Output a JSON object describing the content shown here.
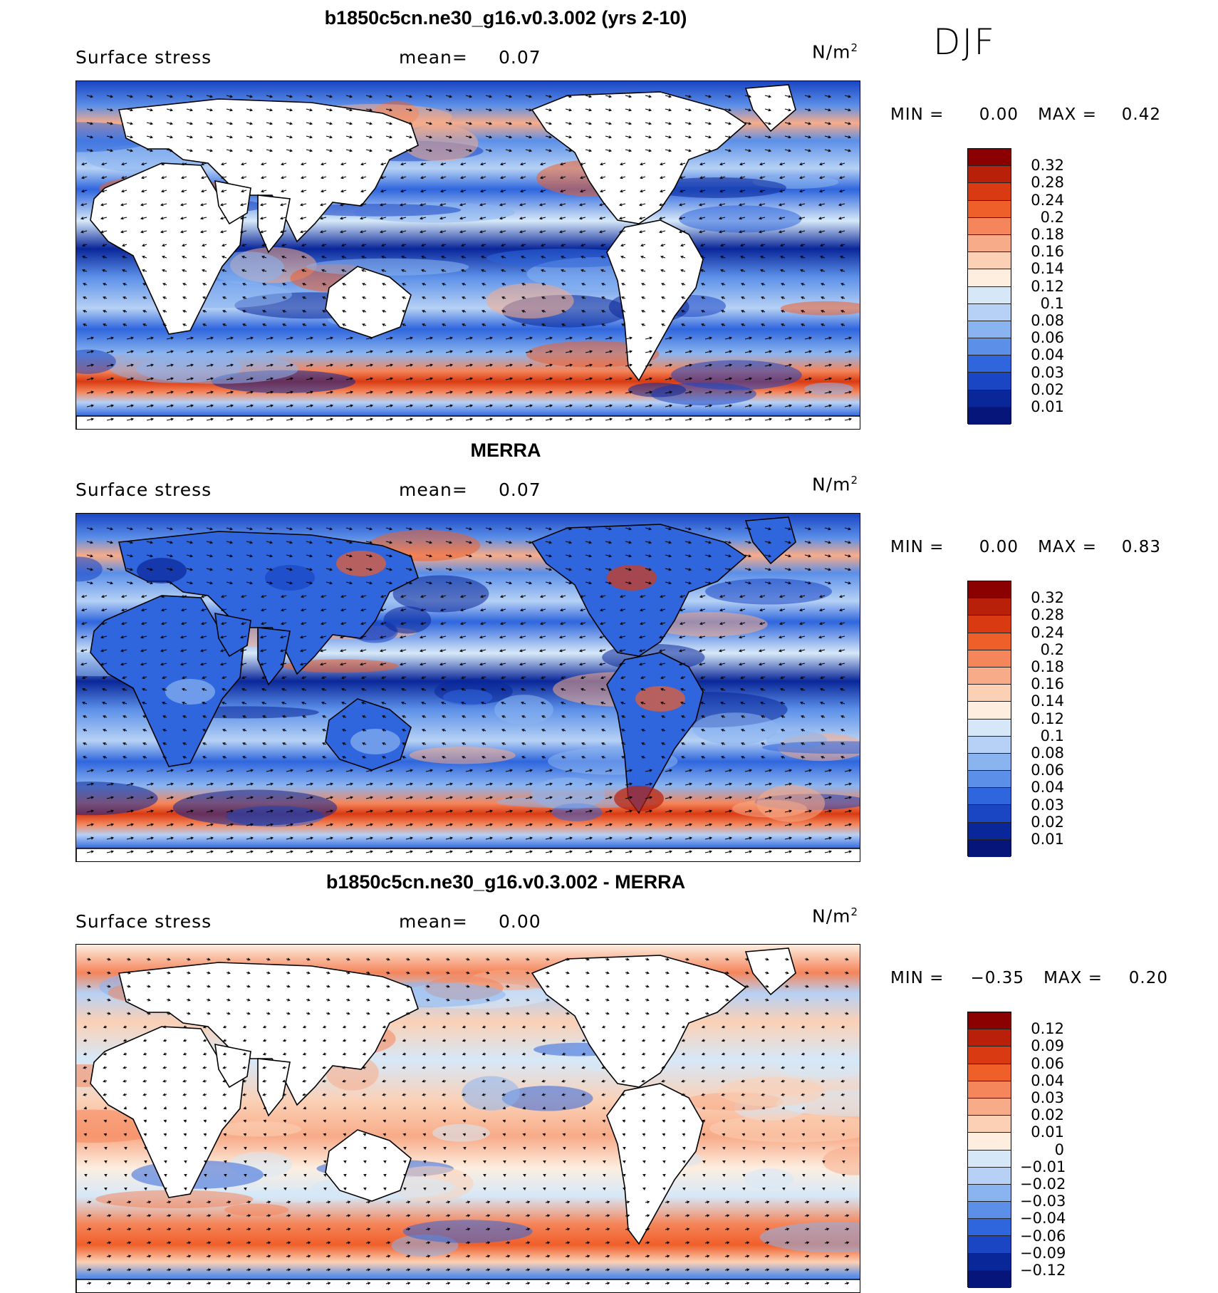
{
  "season": "DJF",
  "units": "N/m",
  "units_exp": "2",
  "panels": [
    {
      "title": "b1850c5cn.ne30_g16.v0.3.002 (yrs 2-10)",
      "variable": "Surface stress",
      "mean_label": "mean=",
      "mean_value": "0.07",
      "min_label": "MIN =",
      "min_value": "0.00",
      "max_label": "MAX =",
      "max_value": "0.42",
      "legend": [
        "0.32",
        "0.28",
        "0.24",
        "0.2",
        "0.18",
        "0.16",
        "0.14",
        "0.12",
        "0.1",
        "0.08",
        "0.06",
        "0.04",
        "0.03",
        "0.02",
        "0.01"
      ],
      "colors": [
        "#8b0000",
        "#b8200a",
        "#d93a12",
        "#ef5f2a",
        "#f5855a",
        "#f8ab88",
        "#fbd0b5",
        "#fdeee0",
        "#d6e8f8",
        "#b6d1f5",
        "#8ab4f0",
        "#5b8fe8",
        "#2f66dd",
        "#1a46c4",
        "#0a2799",
        "#05157a"
      ]
    },
    {
      "title": "MERRA",
      "variable": "Surface stress",
      "mean_label": "mean=",
      "mean_value": "0.07",
      "min_label": "MIN =",
      "min_value": "0.00",
      "max_label": "MAX =",
      "max_value": "0.83",
      "legend": [
        "0.32",
        "0.28",
        "0.24",
        "0.2",
        "0.18",
        "0.16",
        "0.14",
        "0.12",
        "0.1",
        "0.08",
        "0.06",
        "0.04",
        "0.03",
        "0.02",
        "0.01"
      ],
      "colors": [
        "#8b0000",
        "#b8200a",
        "#d93a12",
        "#ef5f2a",
        "#f5855a",
        "#f8ab88",
        "#fbd0b5",
        "#fdeee0",
        "#d6e8f8",
        "#b6d1f5",
        "#8ab4f0",
        "#5b8fe8",
        "#2f66dd",
        "#1a46c4",
        "#0a2799",
        "#05157a"
      ]
    },
    {
      "title": "b1850c5cn.ne30_g16.v0.3.002 - MERRA",
      "variable": "Surface stress",
      "mean_label": "mean=",
      "mean_value": "0.00",
      "min_label": "MIN =",
      "min_value": "−0.35",
      "max_label": "MAX =",
      "max_value": "0.20",
      "legend": [
        "0.12",
        "0.09",
        "0.06",
        "0.04",
        "0.03",
        "0.02",
        "0.01",
        "0",
        "−0.01",
        "−0.02",
        "−0.03",
        "−0.04",
        "−0.06",
        "−0.09",
        "−0.12"
      ],
      "colors": [
        "#8b0000",
        "#b8200a",
        "#d93a12",
        "#ef5f2a",
        "#f5855a",
        "#f8ab88",
        "#fbd0b5",
        "#fdeee0",
        "#d6e8f8",
        "#b6d1f5",
        "#8ab4f0",
        "#5b8fe8",
        "#2f66dd",
        "#1a46c4",
        "#0a2799",
        "#05157a"
      ]
    }
  ]
}
